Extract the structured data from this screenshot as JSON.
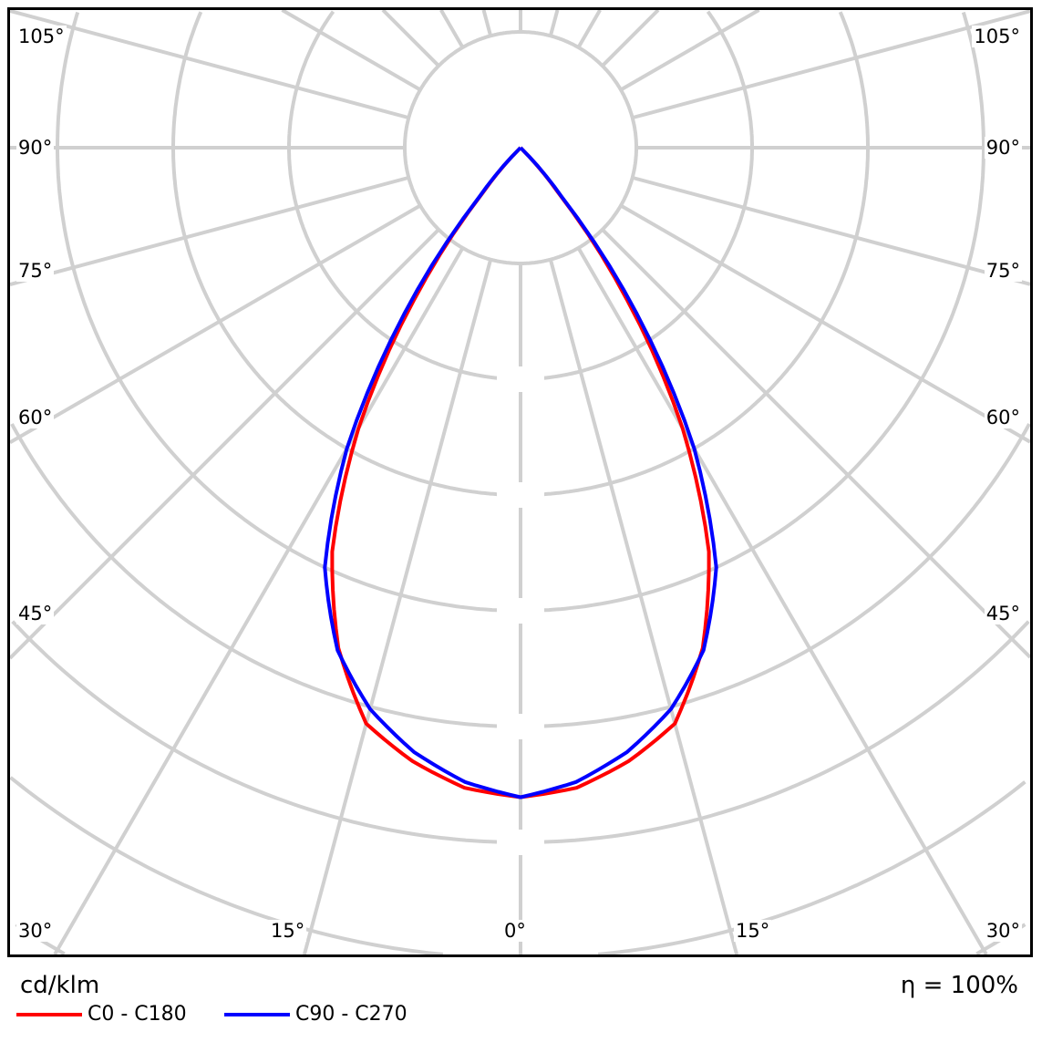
{
  "chart_data": {
    "type": "polar-line",
    "units": "cd/klm",
    "efficiency": "η = 100%",
    "angle_step_deg": 15,
    "ring_labels_visible": false,
    "grid": true,
    "tick_labels_left": [
      "105°",
      "90°",
      "75°",
      "60°",
      "45°",
      "30°"
    ],
    "tick_labels_right": [
      "105°",
      "90°",
      "75°",
      "60°",
      "45°",
      "30°"
    ],
    "tick_labels_bottom": [
      "15°",
      "0°",
      "15°"
    ],
    "angles_deg": [
      0,
      5,
      10,
      15,
      20,
      25,
      30,
      35,
      40,
      45,
      90
    ],
    "series": [
      {
        "name": "C0 - C180",
        "color": "#ff0000",
        "values": [
          5.61,
          5.55,
          5.38,
          5.15,
          4.6,
          3.85,
          2.8,
          1.6,
          0.5,
          0,
          0
        ]
      },
      {
        "name": "C90 - C270",
        "color": "#0000ff",
        "values": [
          5.61,
          5.5,
          5.3,
          5.02,
          4.62,
          4.0,
          3.0,
          1.75,
          0.55,
          0,
          0
        ]
      }
    ],
    "value_units_note_hidden": null,
    "grid_color": "#d0d0d0",
    "legend_position": "bottom-left"
  }
}
